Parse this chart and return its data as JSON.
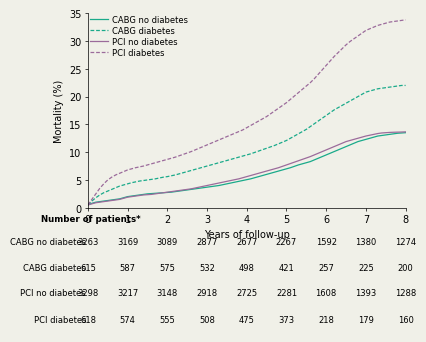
{
  "xlabel": "Years of follow-up",
  "ylabel": "Mortality (%)",
  "ylim": [
    0,
    35
  ],
  "xlim": [
    0,
    8
  ],
  "yticks": [
    0,
    5,
    10,
    15,
    20,
    25,
    30,
    35
  ],
  "xticks": [
    0,
    1,
    2,
    3,
    4,
    5,
    6,
    7,
    8
  ],
  "curves": {
    "cabg_no_diab": {
      "label": "CABG no diabetes",
      "color": "#1aaa8a",
      "linestyle": "solid",
      "x": [
        0,
        0.1,
        0.2,
        0.3,
        0.4,
        0.5,
        0.6,
        0.7,
        0.8,
        0.9,
        1.0,
        1.1,
        1.2,
        1.3,
        1.4,
        1.5,
        1.6,
        1.7,
        1.8,
        1.9,
        2.0,
        2.1,
        2.2,
        2.3,
        2.4,
        2.5,
        2.6,
        2.7,
        2.8,
        2.9,
        3.0,
        3.1,
        3.2,
        3.3,
        3.4,
        3.5,
        3.6,
        3.7,
        3.8,
        3.9,
        4.0,
        4.1,
        4.2,
        4.3,
        4.4,
        4.5,
        4.6,
        4.7,
        4.8,
        4.9,
        5.0,
        5.1,
        5.2,
        5.3,
        5.4,
        5.5,
        5.6,
        5.7,
        5.8,
        5.9,
        6.0,
        6.1,
        6.2,
        6.3,
        6.4,
        6.5,
        6.6,
        6.7,
        6.8,
        6.9,
        7.0,
        7.1,
        7.2,
        7.3,
        7.4,
        7.5,
        7.6,
        7.7,
        7.8,
        7.9,
        8.0
      ],
      "y": [
        0.5,
        0.8,
        1.0,
        1.1,
        1.2,
        1.3,
        1.4,
        1.5,
        1.6,
        1.8,
        2.0,
        2.1,
        2.2,
        2.3,
        2.4,
        2.5,
        2.55,
        2.6,
        2.65,
        2.7,
        2.75,
        2.8,
        2.9,
        3.0,
        3.1,
        3.2,
        3.3,
        3.4,
        3.5,
        3.6,
        3.7,
        3.8,
        3.9,
        4.0,
        4.15,
        4.3,
        4.45,
        4.6,
        4.75,
        4.9,
        5.05,
        5.2,
        5.4,
        5.6,
        5.8,
        6.0,
        6.2,
        6.4,
        6.6,
        6.8,
        7.0,
        7.2,
        7.45,
        7.7,
        7.9,
        8.1,
        8.3,
        8.6,
        8.9,
        9.2,
        9.5,
        9.8,
        10.1,
        10.4,
        10.7,
        11.0,
        11.3,
        11.6,
        11.9,
        12.1,
        12.3,
        12.5,
        12.7,
        12.9,
        13.0,
        13.1,
        13.2,
        13.3,
        13.4,
        13.45,
        13.5
      ]
    },
    "cabg_diab": {
      "label": "CABG diabetes",
      "color": "#1aaa8a",
      "linestyle": "dashed",
      "x": [
        0,
        0.1,
        0.2,
        0.3,
        0.4,
        0.5,
        0.6,
        0.7,
        0.8,
        0.9,
        1.0,
        1.1,
        1.2,
        1.3,
        1.4,
        1.5,
        1.6,
        1.7,
        1.8,
        1.9,
        2.0,
        2.1,
        2.2,
        2.3,
        2.4,
        2.5,
        2.6,
        2.7,
        2.8,
        2.9,
        3.0,
        3.1,
        3.2,
        3.3,
        3.4,
        3.5,
        3.6,
        3.7,
        3.8,
        3.9,
        4.0,
        4.1,
        4.2,
        4.3,
        4.4,
        4.5,
        4.6,
        4.7,
        4.8,
        4.9,
        5.0,
        5.1,
        5.2,
        5.3,
        5.4,
        5.5,
        5.6,
        5.7,
        5.8,
        5.9,
        6.0,
        6.1,
        6.2,
        6.3,
        6.4,
        6.5,
        6.6,
        6.7,
        6.8,
        6.9,
        7.0,
        7.1,
        7.2,
        7.3,
        7.4,
        7.5,
        7.6,
        7.7,
        7.8,
        7.9,
        8.0
      ],
      "y": [
        0.5,
        1.2,
        1.8,
        2.3,
        2.7,
        3.0,
        3.3,
        3.6,
        3.9,
        4.1,
        4.3,
        4.5,
        4.65,
        4.8,
        4.9,
        5.0,
        5.1,
        5.2,
        5.35,
        5.5,
        5.6,
        5.75,
        5.9,
        6.1,
        6.3,
        6.5,
        6.7,
        6.9,
        7.1,
        7.3,
        7.5,
        7.7,
        7.9,
        8.1,
        8.3,
        8.5,
        8.7,
        8.9,
        9.1,
        9.3,
        9.5,
        9.7,
        9.95,
        10.2,
        10.45,
        10.7,
        10.95,
        11.2,
        11.5,
        11.8,
        12.1,
        12.5,
        12.9,
        13.3,
        13.7,
        14.1,
        14.6,
        15.1,
        15.6,
        16.1,
        16.6,
        17.1,
        17.6,
        18.0,
        18.4,
        18.8,
        19.2,
        19.6,
        20.0,
        20.4,
        20.8,
        21.0,
        21.2,
        21.4,
        21.5,
        21.6,
        21.7,
        21.8,
        21.9,
        22.0,
        22.0
      ]
    },
    "pci_no_diab": {
      "label": "PCI no diabetes",
      "color": "#9b6b9b",
      "linestyle": "solid",
      "x": [
        0,
        0.1,
        0.2,
        0.3,
        0.4,
        0.5,
        0.6,
        0.7,
        0.8,
        0.9,
        1.0,
        1.1,
        1.2,
        1.3,
        1.4,
        1.5,
        1.6,
        1.7,
        1.8,
        1.9,
        2.0,
        2.1,
        2.2,
        2.3,
        2.4,
        2.5,
        2.6,
        2.7,
        2.8,
        2.9,
        3.0,
        3.1,
        3.2,
        3.3,
        3.4,
        3.5,
        3.6,
        3.7,
        3.8,
        3.9,
        4.0,
        4.1,
        4.2,
        4.3,
        4.4,
        4.5,
        4.6,
        4.7,
        4.8,
        4.9,
        5.0,
        5.1,
        5.2,
        5.3,
        5.4,
        5.5,
        5.6,
        5.7,
        5.8,
        5.9,
        6.0,
        6.1,
        6.2,
        6.3,
        6.4,
        6.5,
        6.6,
        6.7,
        6.8,
        6.9,
        7.0,
        7.1,
        7.2,
        7.3,
        7.4,
        7.5,
        7.6,
        7.7,
        7.8,
        7.9,
        8.0
      ],
      "y": [
        0.5,
        0.7,
        0.9,
        1.0,
        1.1,
        1.2,
        1.3,
        1.4,
        1.5,
        1.7,
        1.9,
        2.0,
        2.1,
        2.2,
        2.3,
        2.35,
        2.4,
        2.5,
        2.6,
        2.7,
        2.8,
        2.9,
        3.0,
        3.1,
        3.2,
        3.3,
        3.4,
        3.55,
        3.7,
        3.85,
        4.0,
        4.15,
        4.3,
        4.45,
        4.6,
        4.75,
        4.9,
        5.05,
        5.2,
        5.4,
        5.6,
        5.8,
        6.0,
        6.2,
        6.4,
        6.6,
        6.8,
        7.0,
        7.2,
        7.45,
        7.7,
        7.95,
        8.2,
        8.45,
        8.7,
        8.95,
        9.2,
        9.5,
        9.8,
        10.1,
        10.4,
        10.7,
        11.0,
        11.3,
        11.6,
        11.9,
        12.1,
        12.3,
        12.5,
        12.7,
        12.9,
        13.05,
        13.2,
        13.35,
        13.45,
        13.5,
        13.55,
        13.58,
        13.6,
        13.62,
        13.65
      ]
    },
    "pci_diab": {
      "label": "PCI diabetes",
      "color": "#9b6b9b",
      "linestyle": "dashed",
      "x": [
        0,
        0.1,
        0.2,
        0.3,
        0.4,
        0.5,
        0.6,
        0.7,
        0.8,
        0.9,
        1.0,
        1.1,
        1.2,
        1.3,
        1.4,
        1.5,
        1.6,
        1.7,
        1.8,
        1.9,
        2.0,
        2.1,
        2.2,
        2.3,
        2.4,
        2.5,
        2.6,
        2.7,
        2.8,
        2.9,
        3.0,
        3.1,
        3.2,
        3.3,
        3.4,
        3.5,
        3.6,
        3.7,
        3.8,
        3.9,
        4.0,
        4.1,
        4.2,
        4.3,
        4.4,
        4.5,
        4.6,
        4.7,
        4.8,
        4.9,
        5.0,
        5.1,
        5.2,
        5.3,
        5.4,
        5.5,
        5.6,
        5.7,
        5.8,
        5.9,
        6.0,
        6.1,
        6.2,
        6.3,
        6.4,
        6.5,
        6.6,
        6.7,
        6.8,
        6.9,
        7.0,
        7.1,
        7.2,
        7.3,
        7.4,
        7.5,
        7.6,
        7.7,
        7.8,
        7.9,
        8.0
      ],
      "y": [
        0.5,
        1.5,
        2.5,
        3.5,
        4.3,
        5.0,
        5.5,
        5.9,
        6.2,
        6.5,
        6.8,
        7.0,
        7.2,
        7.35,
        7.5,
        7.7,
        7.9,
        8.1,
        8.3,
        8.5,
        8.7,
        8.9,
        9.1,
        9.35,
        9.6,
        9.85,
        10.1,
        10.4,
        10.7,
        11.0,
        11.3,
        11.6,
        11.9,
        12.2,
        12.5,
        12.8,
        13.1,
        13.4,
        13.7,
        14.0,
        14.4,
        14.8,
        15.2,
        15.6,
        16.0,
        16.4,
        16.9,
        17.4,
        17.9,
        18.4,
        18.9,
        19.5,
        20.1,
        20.7,
        21.3,
        21.9,
        22.5,
        23.2,
        24.0,
        24.8,
        25.6,
        26.4,
        27.2,
        27.9,
        28.6,
        29.3,
        29.9,
        30.4,
        30.9,
        31.4,
        31.9,
        32.2,
        32.5,
        32.8,
        33.0,
        33.2,
        33.4,
        33.5,
        33.6,
        33.7,
        33.8
      ]
    }
  },
  "table_header": "Number of patients*",
  "table_rows": [
    {
      "label": "CABG no diabetes",
      "values": [
        "3263",
        "3169",
        "3089",
        "2877",
        "2677",
        "2267",
        "1592",
        "1380",
        "1274"
      ]
    },
    {
      "label": "CABG diabetes",
      "values": [
        "615",
        "587",
        "575",
        "532",
        "498",
        "421",
        "257",
        "225",
        "200"
      ]
    },
    {
      "label": "PCI no diabetes",
      "values": [
        "3298",
        "3217",
        "3148",
        "2918",
        "2725",
        "2281",
        "1608",
        "1393",
        "1288"
      ]
    },
    {
      "label": "PCI diabetes",
      "values": [
        "618",
        "574",
        "555",
        "508",
        "475",
        "373",
        "218",
        "179",
        "160"
      ]
    }
  ],
  "background_color": "#f0f0e8"
}
